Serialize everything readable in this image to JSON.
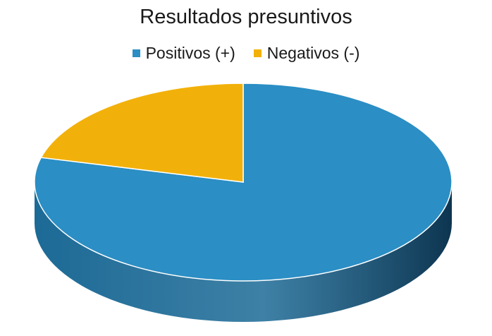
{
  "chart_data": {
    "type": "pie",
    "title": "Resultados presuntivos",
    "legend_placement": "top",
    "style": "3d",
    "slices": [
      {
        "label": "Positivos (+)",
        "value": 79,
        "color": "#2b8ec4",
        "side_color": "#1c6a96"
      },
      {
        "label": "Negativos (-)",
        "value": 21,
        "color": "#f2b10a",
        "side_color": "#b98508"
      }
    ]
  }
}
